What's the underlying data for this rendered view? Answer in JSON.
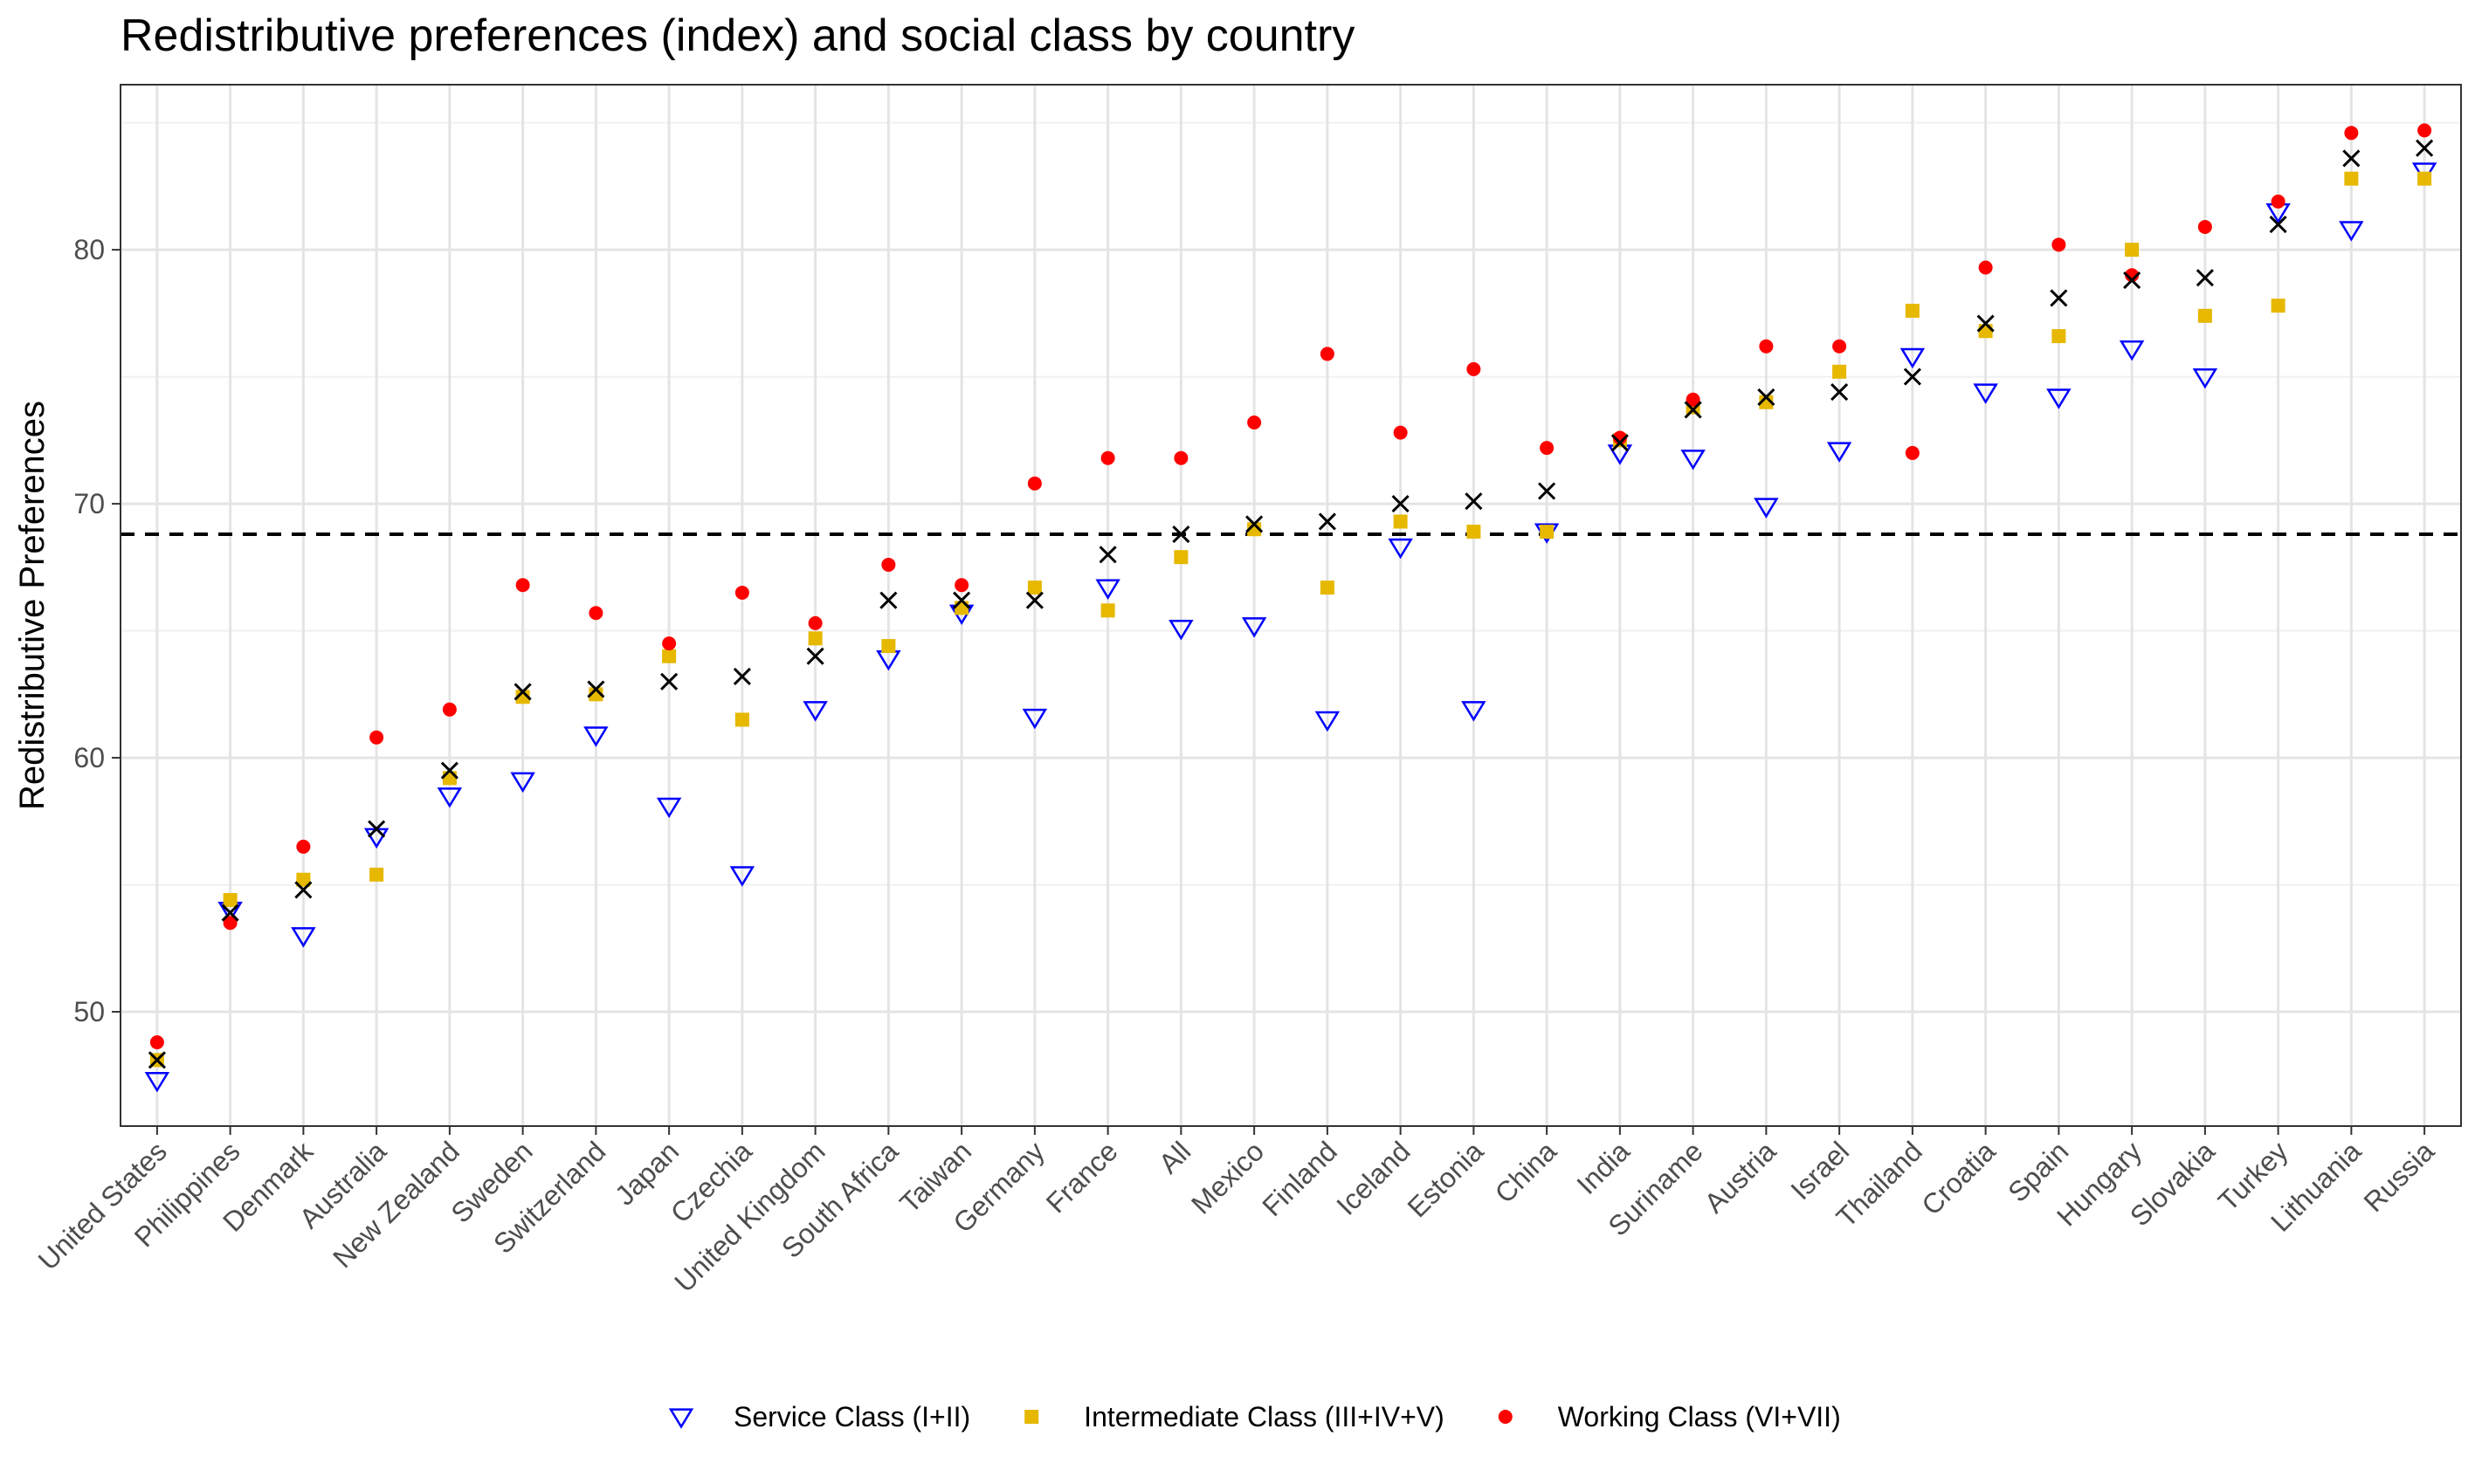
{
  "chart_data": {
    "type": "scatter",
    "title": "Redistributive preferences (index) and social class by country",
    "xlabel": "",
    "ylabel": "Redistributive Preferences",
    "ylim": [
      45.5,
      86.5
    ],
    "yticks": [
      50,
      60,
      70,
      80
    ],
    "grid": true,
    "legend_position": "bottom",
    "reference_line": {
      "y": 68.8,
      "style": "dashed"
    },
    "categories": [
      "United States",
      "Philippines",
      "Denmark",
      "Australia",
      "New Zealand",
      "Sweden",
      "Switzerland",
      "Japan",
      "Czechia",
      "United Kingdom",
      "South Africa",
      "Taiwan",
      "Germany",
      "France",
      "All",
      "Mexico",
      "Finland",
      "Iceland",
      "Estonia",
      "China",
      "India",
      "Suriname",
      "Austria",
      "Israel",
      "Thailand",
      "Croatia",
      "Spain",
      "Hungary",
      "Slovakia",
      "Turkey",
      "Lithuania",
      "Russia"
    ],
    "series": [
      {
        "name": "Service Class (I+II)",
        "marker": "triangle-down-open",
        "color": "#0000ff",
        "values": [
          47.3,
          54.0,
          53.0,
          56.9,
          58.5,
          59.1,
          60.9,
          58.1,
          55.4,
          61.9,
          63.9,
          65.7,
          61.6,
          66.7,
          65.1,
          65.2,
          61.5,
          68.3,
          61.9,
          68.9,
          72.0,
          71.8,
          69.9,
          72.1,
          75.8,
          74.4,
          74.2,
          76.1,
          75.0,
          81.5,
          80.8,
          83.1
        ]
      },
      {
        "name": "Intermediate Class (III+IV+V)",
        "marker": "square",
        "color": "#e6b800",
        "values": [
          48.1,
          54.4,
          55.2,
          55.4,
          59.2,
          62.4,
          62.5,
          64.0,
          61.5,
          64.7,
          64.4,
          65.9,
          66.7,
          65.8,
          67.9,
          69.0,
          66.7,
          69.3,
          68.9,
          68.9,
          72.5,
          73.8,
          74.0,
          75.2,
          77.6,
          76.8,
          76.6,
          80.0,
          77.4,
          77.8,
          82.8,
          82.8
        ]
      },
      {
        "name": "Working Class (VI+VII)",
        "marker": "circle",
        "color": "#ff0000",
        "values": [
          48.8,
          53.5,
          56.5,
          60.8,
          61.9,
          66.8,
          65.7,
          64.5,
          66.5,
          65.3,
          67.6,
          66.8,
          70.8,
          71.8,
          71.8,
          73.2,
          75.9,
          72.8,
          75.3,
          72.2,
          72.6,
          74.1,
          76.2,
          76.2,
          72.0,
          79.3,
          80.2,
          79.0,
          80.9,
          81.9,
          84.6,
          84.7
        ]
      },
      {
        "name": "",
        "marker": "x",
        "color": "#000000",
        "values": [
          48.1,
          53.9,
          54.8,
          57.2,
          59.5,
          62.6,
          62.7,
          63.0,
          63.2,
          64.0,
          66.2,
          66.2,
          66.2,
          68.0,
          68.8,
          69.2,
          69.3,
          70.0,
          70.1,
          70.5,
          72.4,
          73.7,
          74.2,
          74.4,
          75.0,
          77.1,
          78.1,
          78.8,
          78.9,
          81.0,
          83.6,
          84.0
        ]
      }
    ]
  }
}
